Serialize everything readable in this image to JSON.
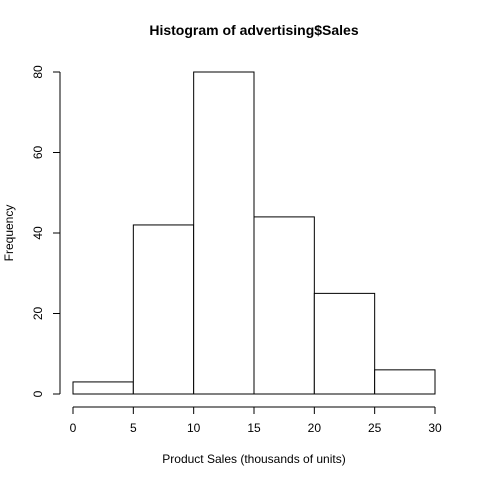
{
  "chart_data": {
    "type": "bar",
    "title": "Histogram of advertising$Sales",
    "xlabel": "Product Sales (thousands of units)",
    "ylabel": "Frequency",
    "bins": [
      {
        "start": 0,
        "end": 5,
        "value": 3
      },
      {
        "start": 5,
        "end": 10,
        "value": 42
      },
      {
        "start": 10,
        "end": 15,
        "value": 80
      },
      {
        "start": 15,
        "end": 20,
        "value": 44
      },
      {
        "start": 20,
        "end": 25,
        "value": 25
      },
      {
        "start": 25,
        "end": 30,
        "value": 6
      }
    ],
    "xlim": [
      0,
      30
    ],
    "ylim": [
      0,
      80
    ],
    "xticks": [
      0,
      5,
      10,
      15,
      20,
      25,
      30
    ],
    "yticks": [
      0,
      20,
      40,
      60,
      80
    ],
    "grid": false,
    "colors": {
      "bar_fill": "#ffffff",
      "bar_stroke": "#000000",
      "axis": "#000000"
    }
  }
}
